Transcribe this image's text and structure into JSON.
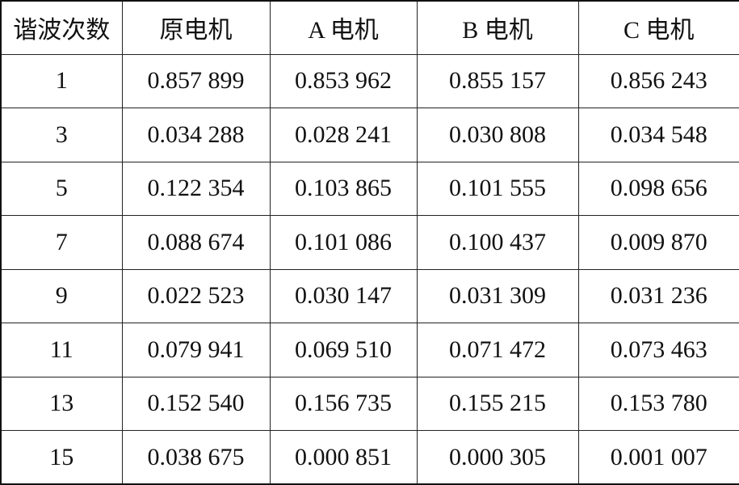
{
  "table": {
    "header": [
      "谐波次数",
      "原电机",
      "A 电机",
      "B 电机",
      "C 电机"
    ],
    "rows": [
      [
        "1",
        "0.857 899",
        "0.853 962",
        "0.855 157",
        "0.856 243"
      ],
      [
        "3",
        "0.034 288",
        "0.028 241",
        "0.030 808",
        "0.034 548"
      ],
      [
        "5",
        "0.122 354",
        "0.103 865",
        "0.101 555",
        "0.098 656"
      ],
      [
        "7",
        "0.088 674",
        "0.101 086",
        "0.100 437",
        "0.009 870"
      ],
      [
        "9",
        "0.022 523",
        "0.030 147",
        "0.031 309",
        "0.031 236"
      ],
      [
        "11",
        "0.079 941",
        "0.069 510",
        "0.071 472",
        "0.073 463"
      ],
      [
        "13",
        "0.152 540",
        "0.156 735",
        "0.155 215",
        "0.153 780"
      ],
      [
        "15",
        "0.038 675",
        "0.000 851",
        "0.000 305",
        "0.001 007"
      ]
    ]
  }
}
